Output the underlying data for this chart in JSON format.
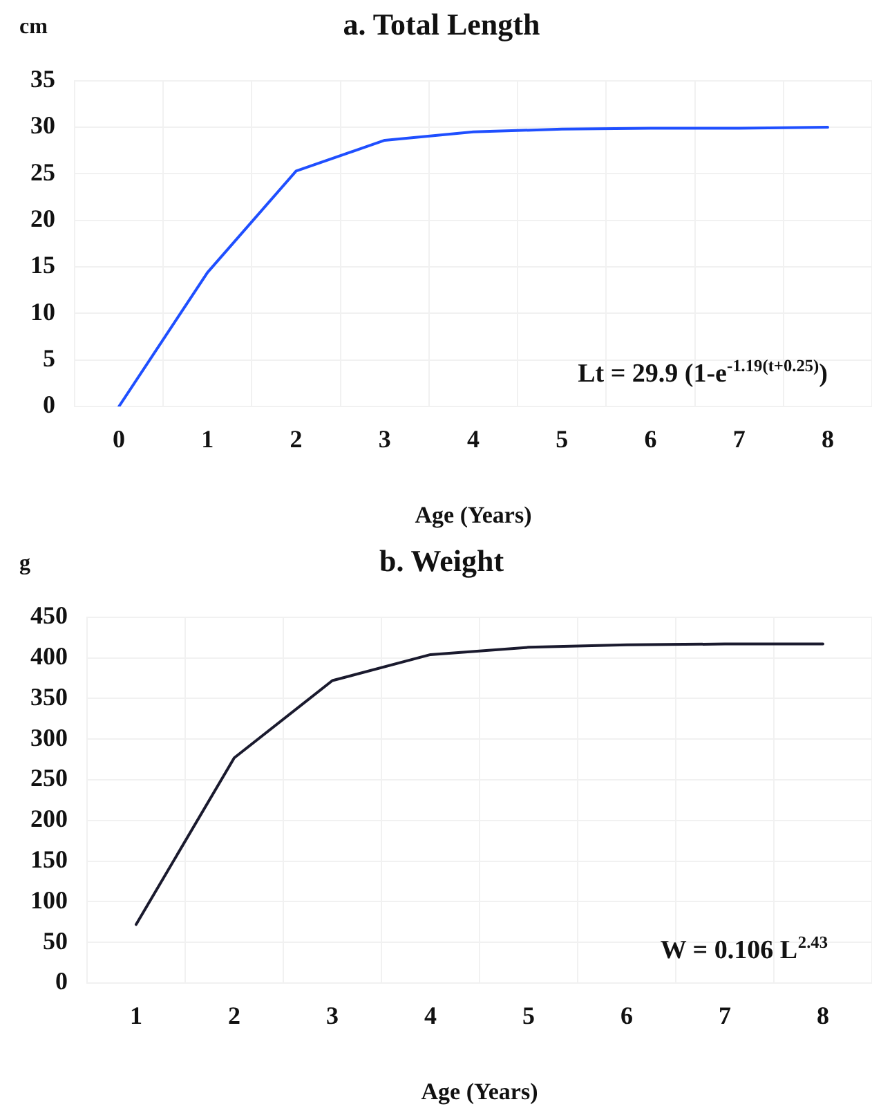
{
  "chart_data": [
    {
      "type": "line",
      "title": "a. Total Length",
      "ylabel": "cm",
      "xlabel": "Age (Years)",
      "categories": [
        "0",
        "1",
        "2",
        "3",
        "4",
        "5",
        "6",
        "7",
        "8"
      ],
      "series": [
        {
          "color": "#1f4fff",
          "values": [
            0,
            14.4,
            25.3,
            28.6,
            29.5,
            29.8,
            29.9,
            29.9,
            30
          ]
        }
      ],
      "ylim": [
        0,
        35
      ],
      "yticks": [
        0,
        5,
        10,
        15,
        20,
        25,
        30,
        35
      ],
      "grid": true,
      "legend": false,
      "marker": "none",
      "line_style": "solid",
      "annotations": [
        "Lt = 29.9 (1-e$^{-1.19(t+0.25)}$)"
      ]
    },
    {
      "type": "line",
      "title": "b. Weight",
      "ylabel": "g",
      "xlabel": "Age (Years)",
      "categories": [
        "1",
        "2",
        "3",
        "4",
        "5",
        "6",
        "7",
        "8"
      ],
      "series": [
        {
          "color": "#1a1a2e",
          "values": [
            72,
            277,
            372,
            404,
            413,
            416,
            417,
            417
          ]
        }
      ],
      "ylim": [
        0,
        450
      ],
      "yticks": [
        0,
        50,
        100,
        150,
        200,
        250,
        300,
        350,
        400,
        450
      ],
      "grid": true,
      "legend": false,
      "marker": "none",
      "line_style": "solid",
      "annotations": [
        "W = 0.106 L$^{2.43}$"
      ]
    }
  ]
}
